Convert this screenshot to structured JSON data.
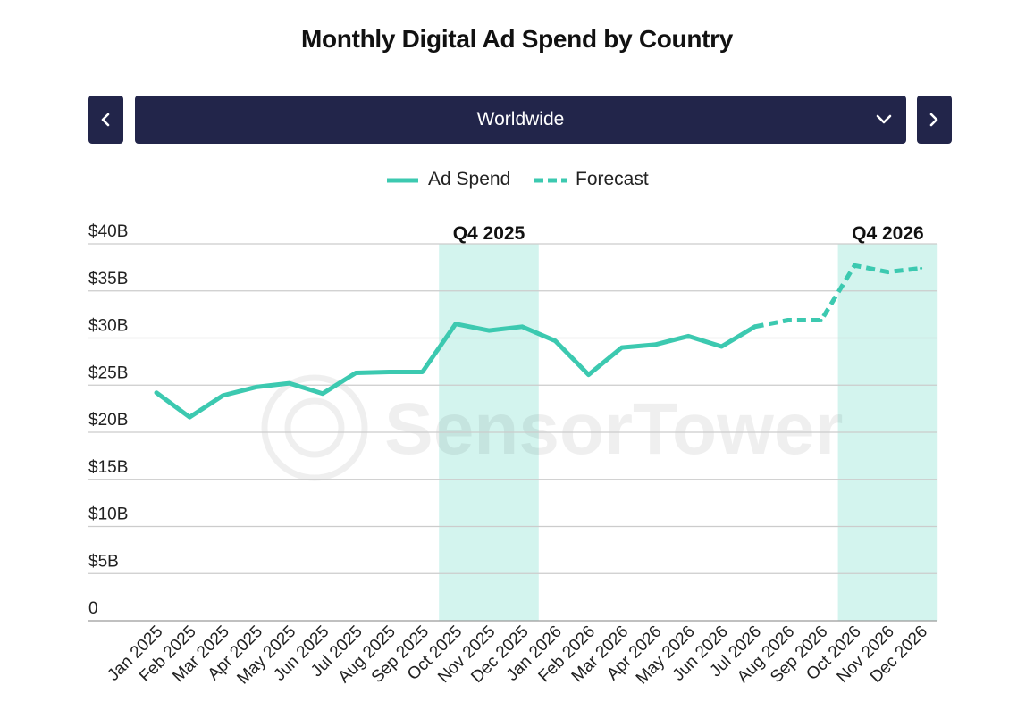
{
  "title": "Monthly Digital Ad Spend by Country",
  "selector": {
    "selected": "Worldwide",
    "prev_icon": "chevron-left-icon",
    "next_icon": "chevron-right-icon",
    "dropdown_icon": "chevron-down-icon"
  },
  "legend": {
    "actual_label": "Ad Spend",
    "forecast_label": "Forecast"
  },
  "colors": {
    "series": "#3cc9b0",
    "highlight": "#d3f4ee",
    "control_bg": "#22254a",
    "grid": "#cccccc"
  },
  "watermark": "SensorTower",
  "chart_data": {
    "type": "line",
    "title": "Monthly Digital Ad Spend by Country",
    "x": [
      "Jan 2025",
      "Feb 2025",
      "Mar 2025",
      "Apr 2025",
      "May 2025",
      "Jun 2025",
      "Jul 2025",
      "Aug 2025",
      "Sep 2025",
      "Oct 2025",
      "Nov 2025",
      "Dec 2025",
      "Jan 2026",
      "Feb 2026",
      "Mar 2026",
      "Apr 2026",
      "May 2026",
      "Jun 2026",
      "Jul 2026",
      "Aug 2026",
      "Sep 2026",
      "Oct 2026",
      "Nov 2026",
      "Dec 2026"
    ],
    "series": [
      {
        "name": "Ad Spend",
        "style": "solid",
        "values": [
          24.2,
          21.6,
          23.9,
          24.8,
          25.2,
          24.1,
          26.3,
          26.4,
          26.4,
          31.5,
          30.8,
          31.2,
          29.7,
          26.1,
          29.0,
          29.3,
          30.2,
          29.1,
          31.2,
          null,
          null,
          null,
          null,
          null
        ]
      },
      {
        "name": "Forecast",
        "style": "dashed",
        "values": [
          null,
          null,
          null,
          null,
          null,
          null,
          null,
          null,
          null,
          null,
          null,
          null,
          null,
          null,
          null,
          null,
          null,
          null,
          31.2,
          31.9,
          31.9,
          37.7,
          37.0,
          37.4
        ]
      }
    ],
    "highlights": [
      {
        "label": "Q4 2025",
        "from": "Oct 2025",
        "to": "Dec 2025"
      },
      {
        "label": "Q4 2026",
        "from": "Oct 2026",
        "to": "Dec 2026"
      }
    ],
    "y_ticks": [
      0,
      5,
      10,
      15,
      20,
      25,
      30,
      35,
      40
    ],
    "y_tick_labels": [
      "0",
      "$5B",
      "$10B",
      "$15B",
      "$20B",
      "$25B",
      "$30B",
      "$35B",
      "$40B"
    ],
    "ylim": [
      0,
      40
    ],
    "xlabel": "",
    "ylabel": "",
    "grid": true,
    "legend_position": "top-center"
  }
}
